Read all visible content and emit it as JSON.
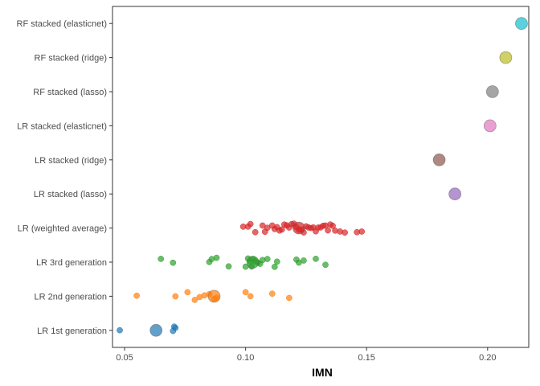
{
  "chart_data": {
    "type": "scatter",
    "title": "",
    "xlabel": "IMN",
    "ylabel": "",
    "xlim": [
      0.045,
      0.217
    ],
    "xticks": [
      "0.05",
      "0.10",
      "0.15",
      "0.20"
    ],
    "xtick_values": [
      0.05,
      0.1,
      0.15,
      0.2
    ],
    "grid": false,
    "legend": "none",
    "categories": [
      "LR 1st generation",
      "LR 2nd generation",
      "LR 3rd generation",
      "LR (weighted average)",
      "LR stacked (lasso)",
      "LR stacked (ridge)",
      "LR stacked (elasticnet)",
      "RF stacked (lasso)",
      "RF stacked (ridge)",
      "RF stacked (elasticnet)"
    ],
    "series": [
      {
        "category": "LR 1st generation",
        "color": "#1f77b4",
        "points": [
          0.048,
          0.07,
          0.0705,
          0.071
        ],
        "mean": 0.063
      },
      {
        "category": "LR 2nd generation",
        "color": "#ff7f0e",
        "points": [
          0.055,
          0.071,
          0.076,
          0.079,
          0.081,
          0.083,
          0.085,
          0.087,
          0.088,
          0.1,
          0.102,
          0.111,
          0.118
        ],
        "mean": 0.087
      },
      {
        "category": "LR 3rd generation",
        "color": "#2ca02c",
        "points": [
          0.065,
          0.07,
          0.085,
          0.086,
          0.088,
          0.093,
          0.1,
          0.101,
          0.102,
          0.1025,
          0.103,
          0.104,
          0.105,
          0.106,
          0.107,
          0.109,
          0.112,
          0.113,
          0.121,
          0.122,
          0.124,
          0.129,
          0.133
        ],
        "mean": 0.103
      },
      {
        "category": "LR (weighted average)",
        "color": "#d62728",
        "points": [
          0.099,
          0.101,
          0.102,
          0.104,
          0.107,
          0.108,
          0.109,
          0.111,
          0.112,
          0.113,
          0.114,
          0.115,
          0.116,
          0.117,
          0.118,
          0.119,
          0.12,
          0.121,
          0.122,
          0.123,
          0.124,
          0.125,
          0.126,
          0.127,
          0.128,
          0.129,
          0.13,
          0.131,
          0.132,
          0.133,
          0.134,
          0.135,
          0.136,
          0.137,
          0.139,
          0.141,
          0.146,
          0.148
        ],
        "mean": 0.122
      },
      {
        "category": "LR stacked (lasso)",
        "color": "#9467bd",
        "points": [],
        "mean": 0.1865
      },
      {
        "category": "LR stacked (ridge)",
        "color": "#8c564b",
        "points": [],
        "mean": 0.18
      },
      {
        "category": "LR stacked (elasticnet)",
        "color": "#e377c2",
        "points": [],
        "mean": 0.201
      },
      {
        "category": "RF stacked (lasso)",
        "color": "#7f7f7f",
        "points": [],
        "mean": 0.202
      },
      {
        "category": "RF stacked (ridge)",
        "color": "#bcbd22",
        "points": [],
        "mean": 0.2075
      },
      {
        "category": "RF stacked (elasticnet)",
        "color": "#17becf",
        "points": [],
        "mean": 0.214
      }
    ]
  }
}
